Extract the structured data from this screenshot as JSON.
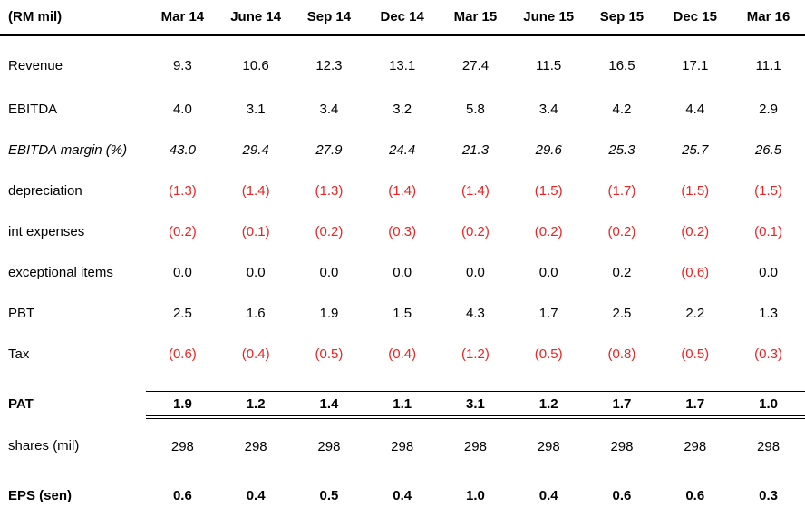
{
  "colors": {
    "text": "#000000",
    "negative": "#ee2222",
    "rule": "#000000"
  },
  "table": {
    "unit_label": "(RM mil)",
    "columns": [
      "Mar 14",
      "June 14",
      "Sep 14",
      "Dec 14",
      "Mar 15",
      "June 15",
      "Sep 15",
      "Dec 15",
      "Mar 16"
    ],
    "rows": [
      {
        "label": "Revenue",
        "style": "normal",
        "values": [
          "9.3",
          "10.6",
          "12.3",
          "13.1",
          "27.4",
          "11.5",
          "16.5",
          "17.1",
          "11.1"
        ]
      },
      {
        "label": "EBITDA",
        "style": "normal",
        "values": [
          "4.0",
          "3.1",
          "3.4",
          "3.2",
          "5.8",
          "3.4",
          "4.2",
          "4.4",
          "2.9"
        ]
      },
      {
        "label": "EBITDA margin (%)",
        "style": "italic",
        "values": [
          "43.0",
          "29.4",
          "27.9",
          "24.4",
          "21.3",
          "29.6",
          "25.3",
          "25.7",
          "26.5"
        ]
      },
      {
        "label": "depreciation",
        "style": "normal",
        "values": [
          "(1.3)",
          "(1.4)",
          "(1.3)",
          "(1.4)",
          "(1.4)",
          "(1.5)",
          "(1.7)",
          "(1.5)",
          "(1.5)"
        ]
      },
      {
        "label": "int expenses",
        "style": "normal",
        "values": [
          "(0.2)",
          "(0.1)",
          "(0.2)",
          "(0.3)",
          "(0.2)",
          "(0.2)",
          "(0.2)",
          "(0.2)",
          "(0.1)"
        ]
      },
      {
        "label": "exceptional items",
        "style": "normal",
        "values": [
          "0.0",
          "0.0",
          "0.0",
          "0.0",
          "0.0",
          "0.0",
          "0.2",
          "(0.6)",
          "0.0"
        ]
      },
      {
        "label": "PBT",
        "style": "normal",
        "values": [
          "2.5",
          "1.6",
          "1.9",
          "1.5",
          "4.3",
          "1.7",
          "2.5",
          "2.2",
          "1.3"
        ]
      },
      {
        "label": "Tax",
        "style": "normal",
        "values": [
          "(0.6)",
          "(0.4)",
          "(0.5)",
          "(0.4)",
          "(1.2)",
          "(0.5)",
          "(0.8)",
          "(0.5)",
          "(0.3)"
        ]
      },
      {
        "label": "PAT",
        "style": "bold-total",
        "values": [
          "1.9",
          "1.2",
          "1.4",
          "1.1",
          "3.1",
          "1.2",
          "1.7",
          "1.7",
          "1.0"
        ]
      },
      {
        "label": "shares (mil)",
        "style": "normal",
        "values": [
          "298",
          "298",
          "298",
          "298",
          "298",
          "298",
          "298",
          "298",
          "298"
        ]
      },
      {
        "label": "EPS (sen)",
        "style": "bold",
        "values": [
          "0.6",
          "0.4",
          "0.5",
          "0.4",
          "1.0",
          "0.4",
          "0.6",
          "0.6",
          "0.3"
        ]
      }
    ]
  }
}
